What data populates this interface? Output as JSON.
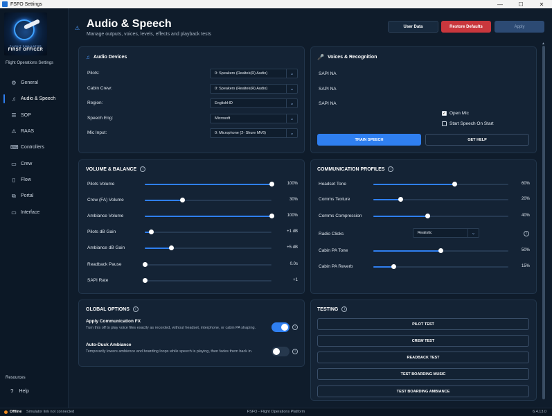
{
  "window": {
    "title": "FSFO Settings",
    "controls": [
      "—",
      "☐",
      "✕"
    ]
  },
  "sidebar": {
    "logo": {
      "line1": "FLIGHT SIMULATOR",
      "line2": "FIRST OFFICER"
    },
    "brand": "Flight Operations Settings",
    "items": [
      {
        "label": "General",
        "icon": "gear-icon",
        "glyph": "⚙"
      },
      {
        "label": "Audio & Speech",
        "icon": "audio-wave-icon",
        "glyph": "♫"
      },
      {
        "label": "SOP",
        "icon": "list-icon",
        "glyph": "☰"
      },
      {
        "label": "RAAS",
        "icon": "warning-icon",
        "glyph": "⚠"
      },
      {
        "label": "Controllers",
        "icon": "gamepad-icon",
        "glyph": "⌨"
      },
      {
        "label": "Crew",
        "icon": "crew-icon",
        "glyph": "▭"
      },
      {
        "label": "Flow",
        "icon": "document-icon",
        "glyph": "▯"
      },
      {
        "label": "Portal",
        "icon": "portal-icon",
        "glyph": "⧉"
      },
      {
        "label": "Interface",
        "icon": "monitor-icon",
        "glyph": "▭"
      }
    ],
    "resources": "Resources",
    "help": {
      "label": "Help",
      "glyph": "?"
    }
  },
  "header": {
    "icon_glyph": "⚠",
    "title": "Audio & Speech",
    "subtitle": "Manage outputs, voices, levels, effects and playback tests",
    "user_data": "User Data",
    "restore": "Restore Defaults",
    "apply": "Apply"
  },
  "audio_devices": {
    "title": "Audio Devices",
    "icon_glyph": "♫",
    "rows": [
      {
        "label": "Pilots:",
        "value": "0: Speakers (Realtek(R) Audio)"
      },
      {
        "label": "Cabin Crew:",
        "value": "0: Speakers (Realtek(R) Audio)"
      },
      {
        "label": "Region:",
        "value": "EnglishHD"
      },
      {
        "label": "Speech Eng:",
        "value": "Microsoft"
      },
      {
        "label": "Mic Input:",
        "value": "0: Microphone (2- Shure MV6)"
      }
    ]
  },
  "voices": {
    "title": "Voices & Recognition",
    "icon_glyph": "🎤",
    "sapi": [
      "SAPI NA",
      "SAPI NA",
      "SAPI NA"
    ],
    "open_mic": {
      "label": "Open Mic",
      "checked": true
    },
    "speech_on_start": {
      "label": "Start Speech On Start",
      "checked": false
    },
    "train": "TRAIN SPEECH",
    "help": "GET HELP"
  },
  "volume": {
    "title": "VOLUME & BALANCE",
    "rows": [
      {
        "label": "Pilots Volume",
        "level": 1.0,
        "value": "100%"
      },
      {
        "label": "Crew (FA) Volume",
        "level": 0.3,
        "value": "30%"
      },
      {
        "label": "Ambiance Volume",
        "level": 1.0,
        "value": "100%"
      },
      {
        "label": "Pilots dB Gain",
        "level": 0.05,
        "value": "+1 dB"
      },
      {
        "label": "Ambiance dB Gain",
        "level": 0.21,
        "value": "+5 dB"
      },
      {
        "label": "Readback Pause",
        "level": 0.0,
        "value": "0.0s"
      },
      {
        "label": "SAPI Rate",
        "level": 0.0,
        "value": "+1"
      }
    ]
  },
  "comm": {
    "title": "COMMUNICATION PROFILES",
    "headset": {
      "label": "Headset Tone",
      "level": 0.6,
      "value": "60%"
    },
    "texture": {
      "label": "Comms Texture",
      "level": 0.2,
      "value": "20%"
    },
    "compression": {
      "label": "Comms Compression",
      "level": 0.4,
      "value": "40%"
    },
    "radio": {
      "label": "Radio Clicks",
      "value": "Realistic"
    },
    "cabin_tone": {
      "label": "Cabin PA Tone",
      "level": 0.5,
      "value": "50%"
    },
    "cabin_reverb": {
      "label": "Cabin PA Reverb",
      "level": 0.15,
      "value": "15%"
    }
  },
  "global": {
    "title": "GLOBAL OPTIONS",
    "fx": {
      "title": "Apply Communication FX",
      "desc": "Turn this off to play voice files exactly as recorded, without headset, interphone, or cabin PA shaping.",
      "on": true
    },
    "duck": {
      "title": "Auto-Duck Ambiance",
      "desc": "Temporarily lowers ambience and boarding loops while speech is playing, then fades them back in.",
      "on": false
    }
  },
  "testing": {
    "title": "TESTING",
    "buttons": [
      "PILOT TEST",
      "CREW TEST",
      "READBACK TEST",
      "TEST BOARDING MUSIC",
      "TEST BOARDING AMBIANCE"
    ]
  },
  "status": {
    "state": "Offline",
    "message": "Simulator link not connected",
    "platform": "FSFO - Flight Operations Platform",
    "version": "6.4.13.0"
  },
  "colors": {
    "accent": "#2f7ff0",
    "danger": "#c9373d",
    "offline": "#f08a1c",
    "panel": "#142335"
  }
}
